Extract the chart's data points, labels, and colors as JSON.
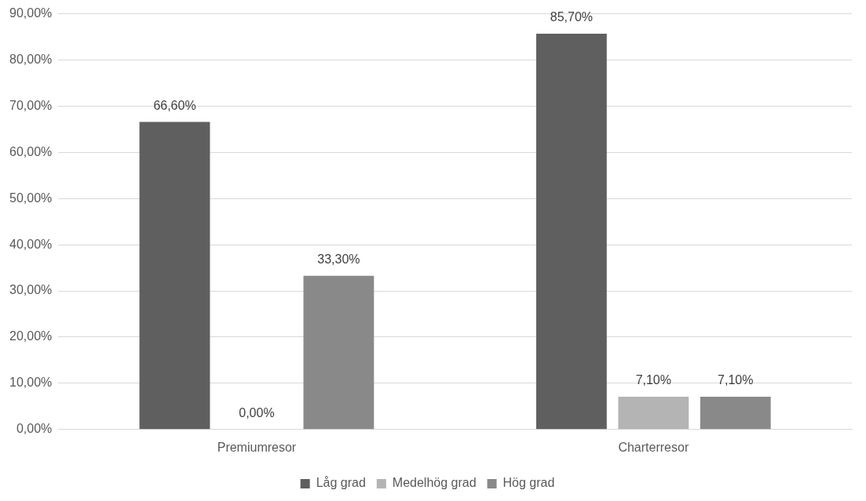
{
  "chart_data": {
    "type": "bar",
    "categories": [
      "Premiumresor",
      "Charterresor"
    ],
    "series": [
      {
        "name": "Låg grad",
        "color": "#5f5f5f",
        "values": [
          66.6,
          85.7
        ],
        "value_labels": [
          "66,60%",
          "85,70%"
        ]
      },
      {
        "name": "Medelhög grad",
        "color": "#b4b4b4",
        "values": [
          0,
          7.1
        ],
        "value_labels": [
          "0,00%",
          "7,10%"
        ]
      },
      {
        "name": "Hög grad",
        "color": "#898989",
        "values": [
          33.3,
          7.1
        ],
        "value_labels": [
          "33,30%",
          "7,10%"
        ]
      }
    ],
    "ylim": [
      0,
      90
    ],
    "yticks": [
      {
        "value": 0,
        "label": "0,00%"
      },
      {
        "value": 10,
        "label": "10,00%"
      },
      {
        "value": 20,
        "label": "20,00%"
      },
      {
        "value": 30,
        "label": "30,00%"
      },
      {
        "value": 40,
        "label": "40,00%"
      },
      {
        "value": 50,
        "label": "50,00%"
      },
      {
        "value": 60,
        "label": "60,00%"
      },
      {
        "value": 70,
        "label": "70,00%"
      },
      {
        "value": 80,
        "label": "80,00%"
      },
      {
        "value": 90,
        "label": "90,00%"
      }
    ],
    "grid": "y",
    "legend": "bottom"
  }
}
